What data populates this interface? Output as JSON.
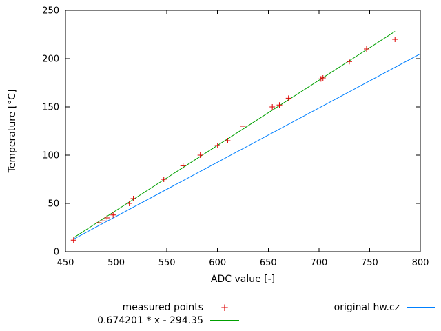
{
  "chart_data": {
    "type": "scatter",
    "title": "",
    "xlabel": "ADC value [-]",
    "ylabel": "Temperature [°C]",
    "xlim": [
      450,
      800
    ],
    "ylim": [
      0,
      250
    ],
    "xticks": [
      450,
      500,
      550,
      600,
      650,
      700,
      750,
      800
    ],
    "yticks": [
      0,
      50,
      100,
      150,
      200,
      250
    ],
    "grid": false,
    "legend_position": "below",
    "series": [
      {
        "name": "measured points",
        "type": "points",
        "marker": "plus",
        "color": "#dd0000",
        "points": [
          [
            458,
            12
          ],
          [
            483,
            30
          ],
          [
            487,
            32
          ],
          [
            491,
            35
          ],
          [
            497,
            38
          ],
          [
            513,
            50
          ],
          [
            517,
            55
          ],
          [
            547,
            75
          ],
          [
            566,
            89
          ],
          [
            583,
            100
          ],
          [
            600,
            110
          ],
          [
            610,
            115
          ],
          [
            625,
            130
          ],
          [
            654,
            150
          ],
          [
            661,
            152
          ],
          [
            670,
            159
          ],
          [
            702,
            179
          ],
          [
            704,
            180
          ],
          [
            730,
            197
          ],
          [
            747,
            210
          ],
          [
            775,
            220
          ]
        ]
      },
      {
        "name": "0.674201 * x - 294.35",
        "type": "line",
        "color": "#00a000",
        "slope": 0.674201,
        "intercept": -294.35,
        "x_range": [
          458,
          775
        ]
      },
      {
        "name": "original hw.cz",
        "type": "line",
        "color": "#0080ff",
        "points": [
          [
            458,
            13
          ],
          [
            800,
            205
          ]
        ]
      }
    ]
  }
}
